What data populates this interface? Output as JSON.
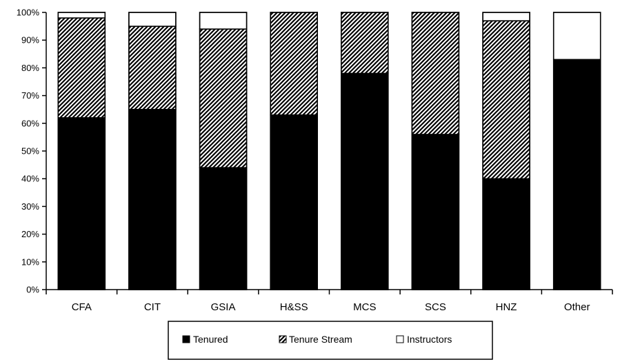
{
  "chart_data": {
    "type": "bar",
    "stacked": true,
    "normalized_percent": true,
    "title": "",
    "xlabel": "",
    "ylabel": "",
    "ylim": [
      0,
      100
    ],
    "yticks": [
      "0%",
      "10%",
      "20%",
      "30%",
      "40%",
      "50%",
      "60%",
      "70%",
      "80%",
      "90%",
      "100%"
    ],
    "grid": false,
    "legend_position": "bottom",
    "categories": [
      "CFA",
      "CIT",
      "GSIA",
      "H&SS",
      "MCS",
      "SCS",
      "HNZ",
      "Other"
    ],
    "series": [
      {
        "name": "Tenured",
        "pattern": "solid",
        "color": "#000000",
        "values": [
          62,
          65,
          44,
          63,
          78,
          56,
          40,
          83
        ]
      },
      {
        "name": "Tenure Stream",
        "pattern": "diagonal-hatch",
        "color": "#000000",
        "values": [
          36,
          30,
          50,
          37,
          22,
          44,
          57,
          0
        ]
      },
      {
        "name": "Instructors",
        "pattern": "none",
        "color": "#ffffff",
        "values": [
          2,
          5,
          6,
          0,
          0,
          0,
          3,
          17
        ]
      }
    ]
  }
}
